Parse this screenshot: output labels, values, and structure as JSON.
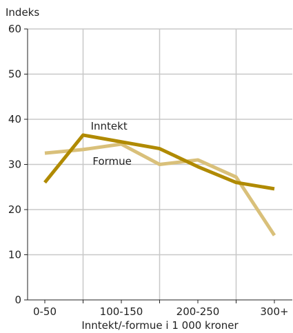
{
  "chart_data": {
    "type": "line",
    "title": "",
    "ylabel": "Indeks",
    "xlabel": "Inntekt/-formue i 1 000 kroner",
    "ylim": [
      0,
      60
    ],
    "yticks": [
      0,
      10,
      20,
      30,
      40,
      50,
      60
    ],
    "x_positions": [
      0,
      1,
      2,
      3,
      4,
      5,
      6
    ],
    "xtick_labels": [
      "0-50",
      "100-150",
      "200-250",
      "300+"
    ],
    "xtick_label_positions": [
      0,
      2,
      4,
      6
    ],
    "grid": true,
    "series": [
      {
        "name": "Formue",
        "color": "#D9C07A",
        "values": [
          32.5,
          33.3,
          34.5,
          30.0,
          31.0,
          27.2,
          14.3
        ]
      },
      {
        "name": "Inntekt",
        "color": "#B08A00",
        "values": [
          26.0,
          36.5,
          35.0,
          33.5,
          29.5,
          26.0,
          24.6
        ]
      }
    ],
    "annotations": [
      {
        "text": "Inntekt",
        "series": "Inntekt"
      },
      {
        "text": "Formue",
        "series": "Formue"
      }
    ]
  }
}
